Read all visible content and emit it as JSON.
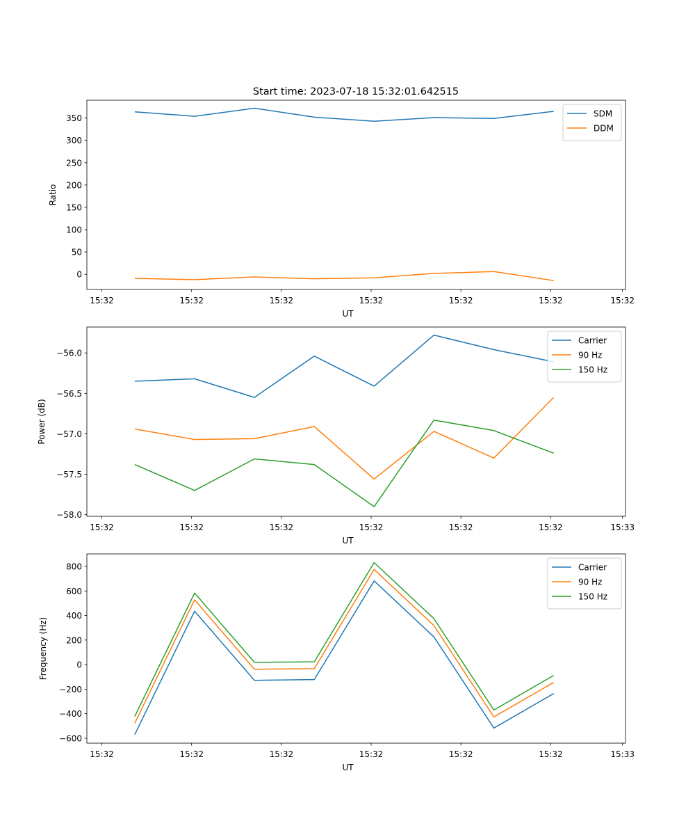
{
  "figure_title": "Start time: 2023-07-18 15:32:01.642515",
  "colors": {
    "c0": "#1f77b4",
    "c1": "#ff7f0e",
    "c2": "#2ca02c"
  },
  "chart_data": [
    {
      "type": "line",
      "title": "Start time: 2023-07-18 15:32:01.642515",
      "xlabel": "UT",
      "ylabel": "Ratio",
      "x": [
        1,
        2,
        3,
        4,
        5,
        6,
        7,
        8
      ],
      "xlim": [
        0.2,
        9.2
      ],
      "xticks": [
        0.45,
        1.95,
        3.45,
        4.95,
        6.45,
        7.95,
        9.15
      ],
      "xtick_labels": [
        "15:32",
        "15:32",
        "15:32",
        "15:32",
        "15:32",
        "15:32",
        "15:32"
      ],
      "ylim": [
        -34,
        390
      ],
      "yticks": [
        0,
        50,
        100,
        150,
        200,
        250,
        300,
        350
      ],
      "ytick_labels": [
        "0",
        "50",
        "100",
        "150",
        "200",
        "250",
        "300",
        "350"
      ],
      "legend": "top-right",
      "series": [
        {
          "name": "SDM",
          "color": "#1f77b4",
          "values": [
            364,
            354,
            372,
            352,
            343,
            351,
            349,
            365
          ]
        },
        {
          "name": "DDM",
          "color": "#ff7f0e",
          "values": [
            -9,
            -12,
            -6,
            -10,
            -8,
            2,
            6,
            -14
          ]
        }
      ]
    },
    {
      "type": "line",
      "title": "",
      "xlabel": "UT",
      "ylabel": "Power (dB)",
      "x": [
        1,
        2,
        3,
        4,
        5,
        6,
        7,
        8
      ],
      "xlim": [
        0.2,
        9.2
      ],
      "xticks": [
        0.45,
        1.95,
        3.45,
        4.95,
        6.45,
        7.95,
        9.15
      ],
      "xtick_labels": [
        "15:32",
        "15:32",
        "15:32",
        "15:32",
        "15:32",
        "15:32",
        "15:33"
      ],
      "ylim": [
        -58.02,
        -55.68
      ],
      "yticks": [
        -58.0,
        -57.5,
        -57.0,
        -56.5,
        -56.0
      ],
      "ytick_labels": [
        "−58.0",
        "−57.5",
        "−57.0",
        "−56.5",
        "−56.0"
      ],
      "legend": "top-right",
      "series": [
        {
          "name": "Carrier",
          "color": "#1f77b4",
          "values": [
            -56.35,
            -56.32,
            -56.55,
            -56.04,
            -56.41,
            -55.78,
            -55.96,
            -56.11
          ]
        },
        {
          "name": "90 Hz",
          "color": "#ff7f0e",
          "values": [
            -56.94,
            -57.07,
            -57.06,
            -56.91,
            -57.56,
            -56.97,
            -57.3,
            -56.55
          ]
        },
        {
          "name": "150 Hz",
          "color": "#2ca02c",
          "values": [
            -57.38,
            -57.7,
            -57.31,
            -57.38,
            -57.9,
            -56.83,
            -56.96,
            -57.24
          ]
        }
      ]
    },
    {
      "type": "line",
      "title": "",
      "xlabel": "UT",
      "ylabel": "Frequency (Hz)",
      "x": [
        1,
        2,
        3,
        4,
        5,
        6,
        7,
        8
      ],
      "xlim": [
        0.2,
        9.2
      ],
      "xticks": [
        0.45,
        1.95,
        3.45,
        4.95,
        6.45,
        7.95,
        9.15
      ],
      "xtick_labels": [
        "15:32",
        "15:32",
        "15:32",
        "15:32",
        "15:32",
        "15:32",
        "15:33"
      ],
      "ylim": [
        -640,
        902
      ],
      "yticks": [
        -600,
        -400,
        -200,
        0,
        200,
        400,
        600,
        800
      ],
      "ytick_labels": [
        "−600",
        "−400",
        "−200",
        "0",
        "200",
        "400",
        "600",
        "800"
      ],
      "legend": "top-right",
      "series": [
        {
          "name": "Carrier",
          "color": "#1f77b4",
          "values": [
            -570,
            435,
            -128,
            -122,
            682,
            225,
            -517,
            -236
          ]
        },
        {
          "name": "90 Hz",
          "color": "#ff7f0e",
          "values": [
            -478,
            528,
            -38,
            -33,
            775,
            318,
            -426,
            -145
          ]
        },
        {
          "name": "150 Hz",
          "color": "#2ca02c",
          "values": [
            -422,
            583,
            18,
            23,
            831,
            374,
            -370,
            -88
          ]
        }
      ]
    }
  ]
}
